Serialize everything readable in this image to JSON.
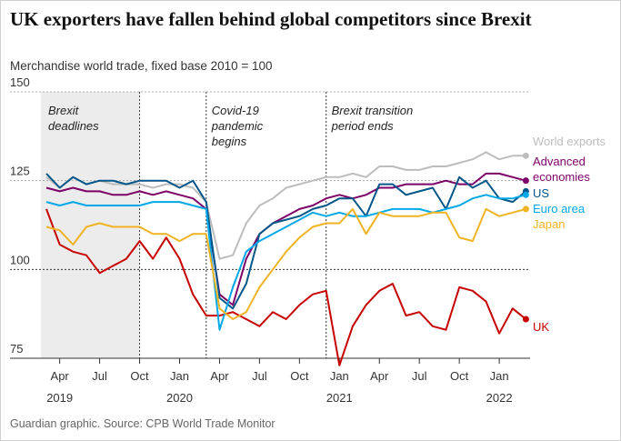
{
  "chart_data": {
    "type": "line",
    "title": "UK exporters have fallen behind global competitors since Brexit",
    "subtitle": "Merchandise world trade, fixed base 2010 = 100",
    "source": "Guardian graphic. Source: CPB World Trade Monitor",
    "x": [
      "2019-03",
      "2019-04",
      "2019-05",
      "2019-06",
      "2019-07",
      "2019-08",
      "2019-09",
      "2019-10",
      "2019-11",
      "2019-12",
      "2020-01",
      "2020-02",
      "2020-03",
      "2020-04",
      "2020-05",
      "2020-06",
      "2020-07",
      "2020-08",
      "2020-09",
      "2020-10",
      "2020-11",
      "2020-12",
      "2021-01",
      "2021-02",
      "2021-03",
      "2021-04",
      "2021-05",
      "2021-06",
      "2021-07",
      "2021-08",
      "2021-09",
      "2021-10",
      "2021-11",
      "2021-12",
      "2022-01",
      "2022-02",
      "2022-03"
    ],
    "series": [
      {
        "name": "UK",
        "color": "#c70000",
        "values": [
          117,
          107,
          105,
          104,
          99,
          101,
          103,
          108,
          103,
          109,
          103,
          93,
          87,
          87,
          88,
          86,
          84,
          88,
          86,
          90,
          93,
          94,
          73,
          84,
          90,
          94,
          96,
          87,
          88,
          84,
          83,
          95,
          94,
          91,
          82,
          89,
          86
        ]
      },
      {
        "name": "World exports",
        "color": "#bdbdbd",
        "values": [
          126,
          123,
          126,
          124,
          125,
          124,
          124,
          124,
          123,
          124,
          124,
          123,
          119,
          103,
          104,
          113,
          118,
          120,
          123,
          124,
          125,
          126,
          126,
          127,
          126,
          129,
          129,
          128,
          128,
          129,
          129,
          130,
          131,
          133,
          131,
          132,
          132
        ]
      },
      {
        "name": "Advanced economies",
        "color": "#7d0068",
        "values": [
          123,
          122,
          123,
          122,
          122,
          121,
          121,
          122,
          121,
          122,
          121,
          120,
          117,
          93,
          90,
          103,
          110,
          113,
          115,
          117,
          118,
          120,
          121,
          120,
          121,
          123,
          123,
          124,
          124,
          124,
          125,
          124,
          124,
          127,
          127,
          126,
          125
        ]
      },
      {
        "name": "US",
        "color": "#005689",
        "values": [
          127,
          123,
          126,
          124,
          125,
          125,
          124,
          125,
          125,
          125,
          123,
          125,
          119,
          92,
          89,
          96,
          110,
          113,
          114,
          115,
          117,
          118,
          120,
          120,
          115,
          124,
          124,
          121,
          122,
          123,
          117,
          126,
          123,
          125,
          120,
          119,
          122
        ]
      },
      {
        "name": "Euro area",
        "color": "#00a8e8",
        "values": [
          119,
          118,
          119,
          118,
          118,
          118,
          118,
          118,
          119,
          119,
          119,
          118,
          117,
          83,
          95,
          105,
          108,
          110,
          112,
          114,
          116,
          115,
          116,
          115,
          115,
          116,
          117,
          117,
          117,
          116,
          117,
          118,
          120,
          121,
          120,
          120,
          121
        ]
      },
      {
        "name": "Japan",
        "color": "#f0b323",
        "values": [
          112,
          111,
          107,
          112,
          113,
          112,
          112,
          112,
          110,
          110,
          108,
          110,
          110,
          89,
          86,
          88,
          95,
          100,
          105,
          109,
          112,
          113,
          113,
          117,
          110,
          116,
          115,
          115,
          115,
          116,
          116,
          109,
          108,
          117,
          115,
          116,
          117
        ]
      }
    ],
    "ylim": [
      75,
      150
    ],
    "yticks": [
      75,
      100,
      125,
      150
    ],
    "xticks": [
      {
        "value": "2019-04",
        "label": "Apr"
      },
      {
        "value": "2019-07",
        "label": "Jul"
      },
      {
        "value": "2019-10",
        "label": "Oct"
      },
      {
        "value": "2020-01",
        "label": "Jan"
      },
      {
        "value": "2020-04",
        "label": "Apr"
      },
      {
        "value": "2020-07",
        "label": "Jul"
      },
      {
        "value": "2020-10",
        "label": "Oct"
      },
      {
        "value": "2021-01",
        "label": "Jan"
      },
      {
        "value": "2021-04",
        "label": "Apr"
      },
      {
        "value": "2021-07",
        "label": "Jul"
      },
      {
        "value": "2021-10",
        "label": "Oct"
      },
      {
        "value": "2022-01",
        "label": "Jan"
      }
    ],
    "xtick_years": [
      {
        "value": "2019-04",
        "label": "2019"
      },
      {
        "value": "2020-01",
        "label": "2020"
      },
      {
        "value": "2021-01",
        "label": "2021"
      },
      {
        "value": "2022-01",
        "label": "2022"
      }
    ],
    "annotations": [
      {
        "text": "Brexit deadlines",
        "x": "2019-10",
        "shade_from": "2019-03"
      },
      {
        "text": "Covid-19 pandemic begins",
        "x": "2020-03"
      },
      {
        "text": "Brexit transition period ends",
        "x": "2020-12"
      }
    ],
    "grid": true
  }
}
